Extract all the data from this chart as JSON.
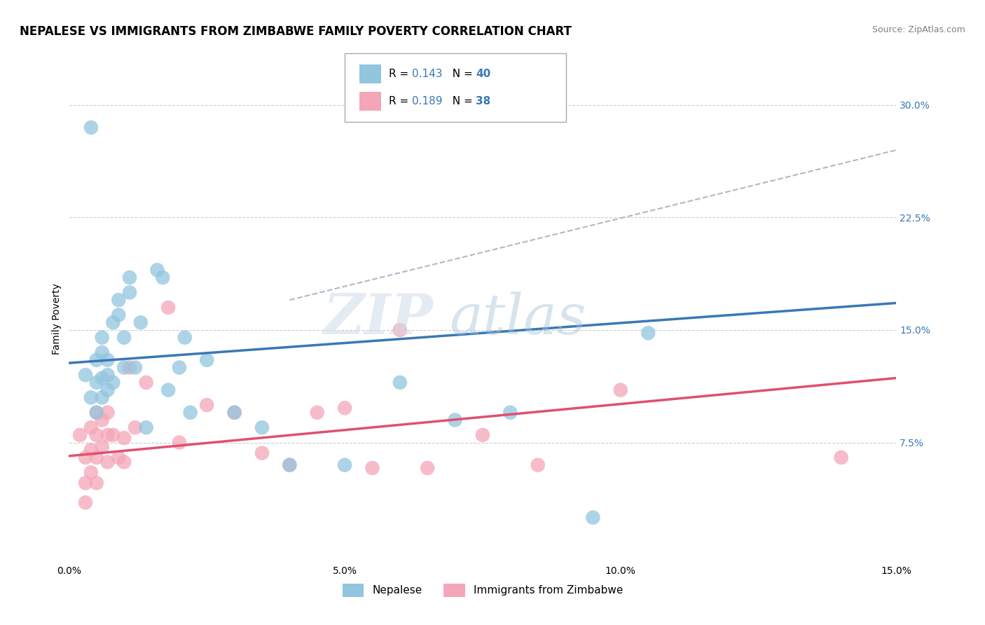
{
  "title": "NEPALESE VS IMMIGRANTS FROM ZIMBABWE FAMILY POVERTY CORRELATION CHART",
  "source": "Source: ZipAtlas.com",
  "ylabel": "Family Poverty",
  "legend1_label": "Nepalese",
  "legend2_label": "Immigrants from Zimbabwe",
  "R1": 0.143,
  "N1": 40,
  "R2": 0.189,
  "N2": 38,
  "blue_color": "#92c5de",
  "pink_color": "#f4a6b8",
  "blue_line_color": "#3a78b5",
  "pink_line_color": "#e05070",
  "gray_line_color": "#b0b8c8",
  "background_color": "#ffffff",
  "grid_color": "#cccccc",
  "xlim": [
    0.0,
    0.15
  ],
  "ylim": [
    -0.005,
    0.32
  ],
  "xticks": [
    0.0,
    0.05,
    0.1,
    0.15
  ],
  "xtick_labels": [
    "0.0%",
    "5.0%",
    "10.0%",
    "15.0%"
  ],
  "yticks": [
    0.0,
    0.075,
    0.15,
    0.225,
    0.3
  ],
  "ytick_labels": [
    "",
    "7.5%",
    "15.0%",
    "22.5%",
    "30.0%"
  ],
  "blue_x": [
    0.003,
    0.004,
    0.004,
    0.005,
    0.005,
    0.005,
    0.006,
    0.006,
    0.006,
    0.006,
    0.007,
    0.007,
    0.007,
    0.008,
    0.008,
    0.009,
    0.009,
    0.01,
    0.01,
    0.011,
    0.011,
    0.012,
    0.013,
    0.014,
    0.016,
    0.017,
    0.018,
    0.02,
    0.021,
    0.022,
    0.025,
    0.03,
    0.035,
    0.04,
    0.05,
    0.06,
    0.07,
    0.08,
    0.095,
    0.105
  ],
  "blue_y": [
    0.12,
    0.285,
    0.105,
    0.13,
    0.115,
    0.095,
    0.145,
    0.135,
    0.118,
    0.105,
    0.13,
    0.12,
    0.11,
    0.155,
    0.115,
    0.17,
    0.16,
    0.145,
    0.125,
    0.185,
    0.175,
    0.125,
    0.155,
    0.085,
    0.19,
    0.185,
    0.11,
    0.125,
    0.145,
    0.095,
    0.13,
    0.095,
    0.085,
    0.06,
    0.06,
    0.115,
    0.09,
    0.095,
    0.025,
    0.148
  ],
  "pink_x": [
    0.002,
    0.003,
    0.003,
    0.003,
    0.004,
    0.004,
    0.004,
    0.005,
    0.005,
    0.005,
    0.005,
    0.006,
    0.006,
    0.007,
    0.007,
    0.007,
    0.008,
    0.009,
    0.01,
    0.01,
    0.011,
    0.012,
    0.014,
    0.018,
    0.02,
    0.025,
    0.03,
    0.035,
    0.04,
    0.045,
    0.05,
    0.055,
    0.06,
    0.065,
    0.075,
    0.085,
    0.1,
    0.14
  ],
  "pink_y": [
    0.08,
    0.065,
    0.048,
    0.035,
    0.085,
    0.07,
    0.055,
    0.095,
    0.08,
    0.065,
    0.048,
    0.09,
    0.072,
    0.095,
    0.08,
    0.062,
    0.08,
    0.065,
    0.078,
    0.062,
    0.125,
    0.085,
    0.115,
    0.165,
    0.075,
    0.1,
    0.095,
    0.068,
    0.06,
    0.095,
    0.098,
    0.058,
    0.15,
    0.058,
    0.08,
    0.06,
    0.11,
    0.065
  ],
  "watermark_text": "ZIP",
  "watermark_text2": "atlas",
  "title_fontsize": 12,
  "axis_label_fontsize": 10,
  "tick_fontsize": 10,
  "legend_fontsize": 11,
  "source_fontsize": 9,
  "gray_line_x": [
    0.04,
    0.15
  ],
  "gray_line_y": [
    0.17,
    0.27
  ]
}
